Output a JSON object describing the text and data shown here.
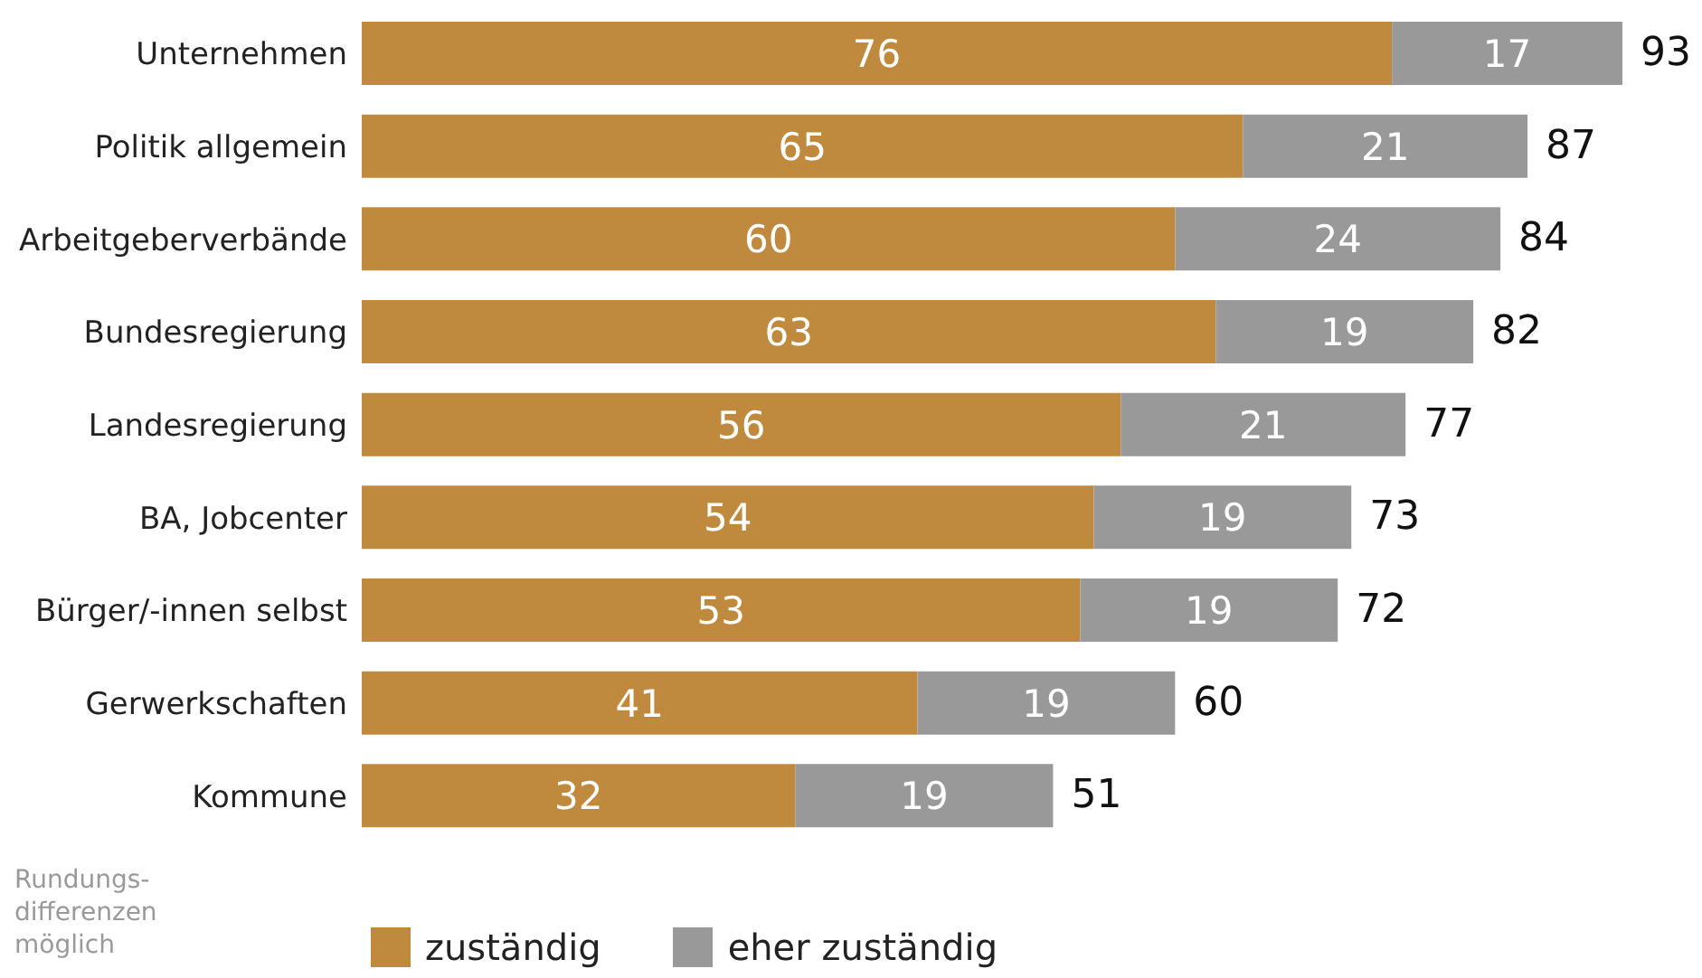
{
  "chart_data": {
    "type": "bar",
    "orientation": "horizontal",
    "stacked": true,
    "categories": [
      "Unternehmen",
      "Politik allgemein",
      "Arbeitgeberverbände",
      "Bundesregierung",
      "Landesregierung",
      "BA, Jobcenter",
      "Bürger/-innen selbst",
      "Gerwerkschaften",
      "Kommune"
    ],
    "series": [
      {
        "name": "zuständig",
        "color": "#c08a3e",
        "values": [
          76,
          65,
          60,
          63,
          56,
          54,
          53,
          41,
          32
        ]
      },
      {
        "name": "eher zuständig",
        "color": "#999999",
        "values": [
          17,
          21,
          24,
          19,
          21,
          19,
          19,
          19,
          19
        ]
      }
    ],
    "totals": [
      "93",
      "87",
      "84",
      "82",
      "77",
      "73",
      "72",
      "60",
      "51"
    ],
    "data_labels": true,
    "tick_labels": "y",
    "grid": false,
    "legend": "bottom",
    "annotations": [
      "Rundungs-\ndifferenzen\nmöglich"
    ]
  }
}
